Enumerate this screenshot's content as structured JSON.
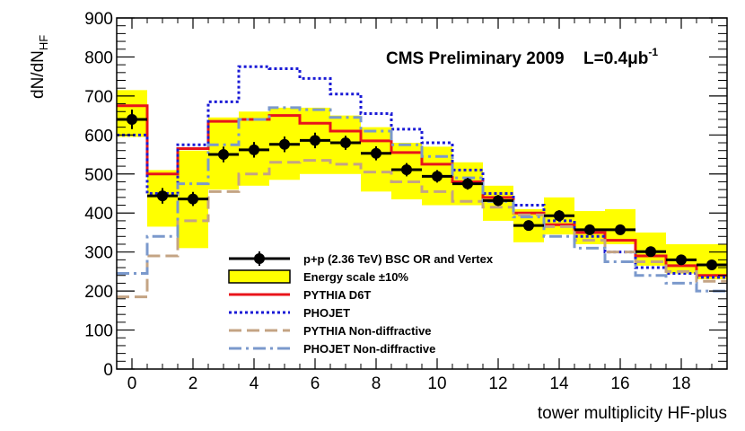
{
  "chart_data": {
    "type": "line",
    "title": "CMS Preliminary 2009",
    "luminosity_label": "L=0.4μb",
    "luminosity_sup": "-1",
    "ylabel_main": "dN/dN",
    "ylabel_sub": "HF",
    "xlabel": "tower multiplicity HF-plus",
    "xlim": [
      -0.5,
      19.5
    ],
    "ylim": [
      0,
      900
    ],
    "x_ticks": [
      0,
      2,
      4,
      6,
      8,
      10,
      12,
      14,
      16,
      18
    ],
    "y_ticks": [
      0,
      100,
      200,
      300,
      400,
      500,
      600,
      700,
      800,
      900
    ],
    "x": [
      0,
      1,
      2,
      3,
      4,
      5,
      6,
      7,
      8,
      9,
      10,
      11,
      12,
      13,
      14,
      15,
      16,
      17,
      18,
      19
    ],
    "data": {
      "name": "p+p (2.36 TeV) BSC OR and Vertex",
      "values": [
        640,
        444,
        436,
        550,
        562,
        576,
        586,
        580,
        553,
        511,
        494,
        475,
        432,
        368,
        393,
        357,
        357,
        301,
        280,
        267
      ],
      "errors": [
        25,
        20,
        18,
        20,
        20,
        20,
        20,
        18,
        18,
        17,
        16,
        15,
        14,
        13,
        14,
        12,
        12,
        10,
        10,
        10
      ]
    },
    "band": {
      "name": "Energy scale ±10%",
      "low": [
        595,
        365,
        310,
        460,
        470,
        485,
        500,
        500,
        455,
        435,
        420,
        420,
        380,
        325,
        345,
        320,
        320,
        265,
        245,
        230
      ],
      "high": [
        715,
        510,
        560,
        645,
        660,
        670,
        670,
        650,
        620,
        580,
        570,
        530,
        470,
        410,
        440,
        405,
        410,
        350,
        320,
        320
      ]
    },
    "series": [
      {
        "name": "PYTHIA D6T",
        "color": "#e8141b",
        "dash": "",
        "values": [
          675,
          500,
          565,
          635,
          640,
          650,
          630,
          610,
          585,
          555,
          525,
          480,
          440,
          400,
          370,
          350,
          330,
          290,
          265,
          240
        ]
      },
      {
        "name": "PHOJET",
        "color": "#1a1ad6",
        "dash": "3,3",
        "values": [
          600,
          450,
          575,
          685,
          775,
          770,
          745,
          705,
          655,
          615,
          580,
          510,
          450,
          420,
          380,
          340,
          300,
          260,
          245,
          235
        ]
      },
      {
        "name": "PYTHIA Non-diffractive",
        "color": "#c4a484",
        "dash": "14,6",
        "values": [
          185,
          290,
          380,
          455,
          500,
          530,
          535,
          525,
          505,
          480,
          455,
          430,
          415,
          395,
          365,
          330,
          300,
          275,
          250,
          225
        ]
      },
      {
        "name": "PHOJET Non-diffractive",
        "color": "#7b99cc",
        "dash": "14,5,3,5",
        "values": [
          245,
          340,
          475,
          575,
          640,
          670,
          665,
          645,
          610,
          575,
          545,
          490,
          430,
          390,
          340,
          310,
          275,
          240,
          220,
          200
        ]
      }
    ]
  }
}
